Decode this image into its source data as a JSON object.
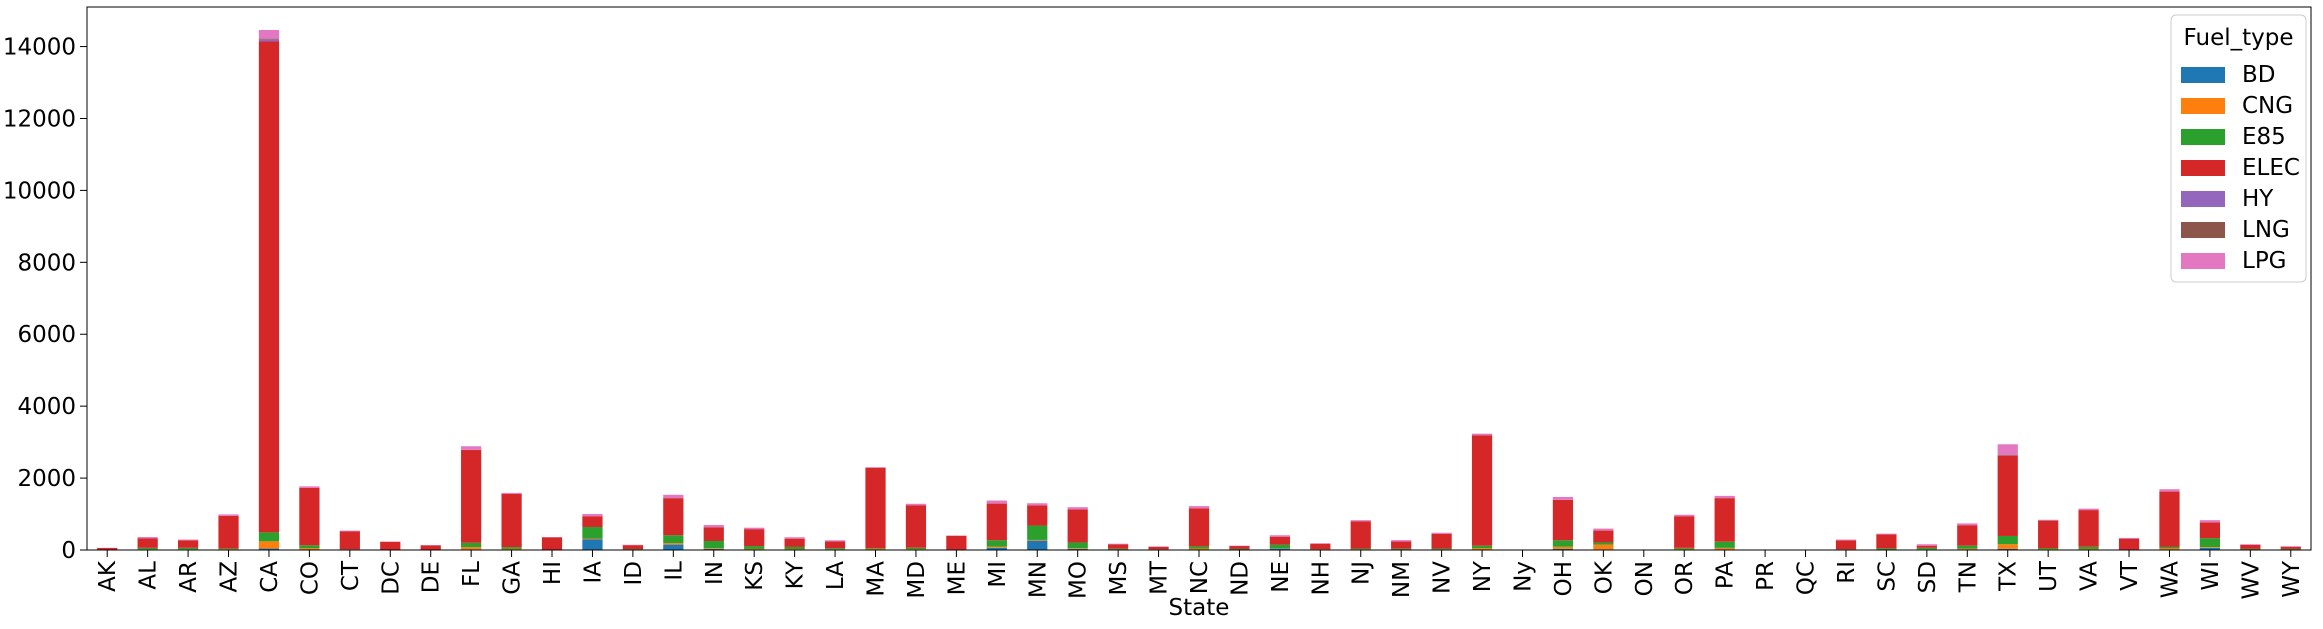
{
  "chart_data": {
    "type": "bar",
    "stacked": true,
    "title": "",
    "xlabel": "State",
    "ylabel": "",
    "ylim": [
      0,
      15100
    ],
    "yticks": [
      0,
      2000,
      4000,
      6000,
      8000,
      10000,
      12000,
      14000
    ],
    "grid": false,
    "legend": {
      "title": "Fuel_type",
      "placement": "top-right"
    },
    "categories": [
      "AK",
      "AL",
      "AR",
      "AZ",
      "CA",
      "CO",
      "CT",
      "DC",
      "DE",
      "FL",
      "GA",
      "HI",
      "IA",
      "ID",
      "IL",
      "IN",
      "KS",
      "KY",
      "LA",
      "MA",
      "MD",
      "ME",
      "MI",
      "MN",
      "MO",
      "MS",
      "MT",
      "NC",
      "ND",
      "NE",
      "NH",
      "NJ",
      "NM",
      "NV",
      "NY",
      "Ny",
      "OH",
      "OK",
      "ON",
      "OR",
      "PA",
      "PR",
      "QC",
      "RI",
      "SC",
      "SD",
      "TN",
      "TX",
      "UT",
      "VA",
      "VT",
      "WA",
      "WI",
      "WV",
      "WY"
    ],
    "series": [
      {
        "name": "BD",
        "color": "#1f77b4",
        "values": [
          0,
          5,
          10,
          5,
          40,
          10,
          0,
          0,
          0,
          20,
          10,
          0,
          300,
          0,
          150,
          30,
          10,
          10,
          5,
          0,
          5,
          0,
          60,
          260,
          30,
          5,
          5,
          10,
          5,
          40,
          0,
          0,
          5,
          5,
          10,
          0,
          30,
          20,
          0,
          10,
          20,
          0,
          0,
          0,
          5,
          10,
          20,
          30,
          5,
          10,
          0,
          15,
          60,
          0,
          5
        ]
      },
      {
        "name": "CNG",
        "color": "#ff7f0e",
        "values": [
          5,
          15,
          10,
          20,
          200,
          40,
          10,
          5,
          5,
          60,
          20,
          5,
          20,
          5,
          40,
          20,
          20,
          15,
          15,
          30,
          20,
          5,
          30,
          20,
          20,
          10,
          5,
          30,
          5,
          10,
          10,
          20,
          10,
          15,
          40,
          0,
          60,
          130,
          0,
          20,
          40,
          0,
          0,
          10,
          10,
          10,
          20,
          130,
          20,
          20,
          5,
          30,
          20,
          10,
          10
        ]
      },
      {
        "name": "E85",
        "color": "#2ca02c",
        "values": [
          5,
          40,
          40,
          20,
          250,
          80,
          10,
          5,
          5,
          120,
          50,
          5,
          320,
          20,
          220,
          200,
          80,
          60,
          30,
          20,
          40,
          10,
          180,
          400,
          160,
          20,
          10,
          60,
          20,
          100,
          10,
          20,
          20,
          20,
          70,
          0,
          180,
          60,
          0,
          30,
          170,
          0,
          0,
          10,
          30,
          40,
          80,
          230,
          30,
          60,
          10,
          40,
          250,
          20,
          15
        ]
      },
      {
        "name": "ELEC",
        "color": "#d62728",
        "values": [
          45,
          260,
          210,
          900,
          13650,
          1600,
          500,
          220,
          120,
          2580,
          1480,
          340,
          300,
          110,
          1030,
          380,
          470,
          230,
          190,
          2230,
          1180,
          380,
          1020,
          560,
          920,
          120,
          70,
          1060,
          80,
          220,
          150,
          760,
          200,
          410,
          3070,
          0,
          1120,
          330,
          0,
          880,
          1210,
          0,
          0,
          250,
          390,
          60,
          570,
          2230,
          760,
          1020,
          300,
          1540,
          440,
          110,
          60
        ]
      },
      {
        "name": "HY",
        "color": "#9467bd",
        "values": [
          0,
          0,
          0,
          0,
          60,
          0,
          5,
          0,
          0,
          0,
          0,
          0,
          0,
          0,
          0,
          0,
          0,
          0,
          0,
          5,
          0,
          0,
          0,
          0,
          0,
          0,
          0,
          0,
          0,
          0,
          0,
          0,
          0,
          0,
          5,
          0,
          0,
          0,
          0,
          0,
          0,
          0,
          0,
          0,
          0,
          0,
          0,
          0,
          0,
          0,
          0,
          5,
          0,
          0,
          0
        ]
      },
      {
        "name": "LNG",
        "color": "#8c564b",
        "values": [
          0,
          0,
          0,
          5,
          20,
          0,
          0,
          0,
          0,
          5,
          0,
          0,
          0,
          0,
          5,
          5,
          0,
          0,
          0,
          0,
          0,
          0,
          5,
          0,
          0,
          0,
          0,
          0,
          0,
          0,
          0,
          0,
          0,
          0,
          0,
          0,
          5,
          5,
          0,
          0,
          5,
          0,
          0,
          0,
          0,
          0,
          0,
          20,
          5,
          0,
          0,
          0,
          0,
          0,
          0
        ]
      },
      {
        "name": "LPG",
        "color": "#e377c2",
        "values": [
          5,
          40,
          20,
          40,
          240,
          40,
          15,
          5,
          5,
          100,
          30,
          10,
          60,
          10,
          90,
          60,
          40,
          40,
          30,
          20,
          40,
          10,
          80,
          60,
          60,
          20,
          10,
          60,
          10,
          40,
          20,
          30,
          40,
          30,
          40,
          0,
          80,
          50,
          0,
          40,
          60,
          0,
          0,
          20,
          20,
          40,
          50,
          300,
          20,
          40,
          20,
          60,
          60,
          20,
          15
        ]
      }
    ]
  }
}
